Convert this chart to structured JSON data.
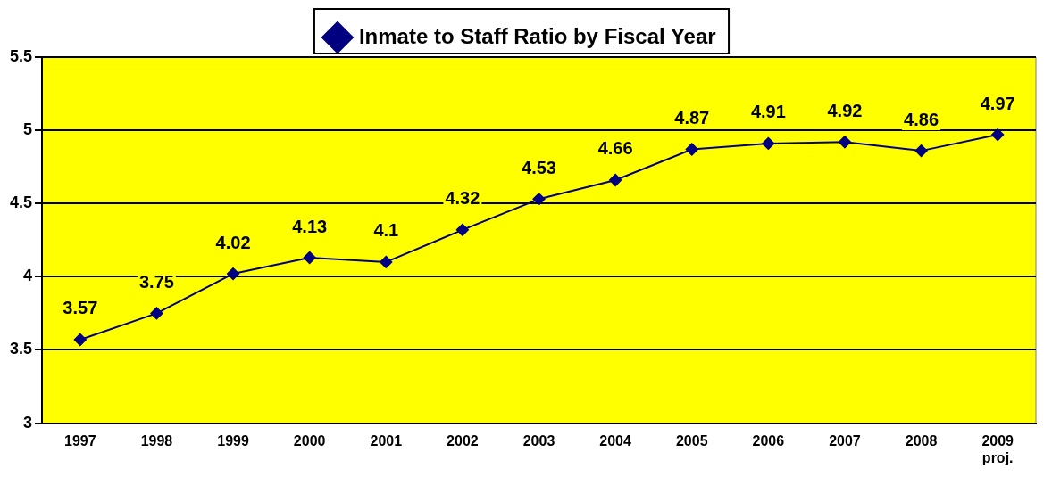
{
  "chart_data": {
    "type": "line",
    "categories": [
      "1997",
      "1998",
      "1999",
      "2000",
      "2001",
      "2002",
      "2003",
      "2004",
      "2005",
      "2006",
      "2007",
      "2008",
      "2009\nproj."
    ],
    "series": [
      {
        "name": "Inmate to Staff Ratio by Fiscal Year",
        "color": "#000080",
        "values": [
          3.57,
          3.75,
          4.02,
          4.13,
          4.1,
          4.32,
          4.53,
          4.66,
          4.87,
          4.91,
          4.92,
          4.86,
          4.97
        ]
      }
    ],
    "ylim": [
      3,
      5.5
    ],
    "yticks": [
      3,
      3.5,
      4,
      4.5,
      5,
      5.5
    ],
    "grid": "y",
    "legend": "top",
    "marker": "diamond",
    "data_labels": true
  }
}
